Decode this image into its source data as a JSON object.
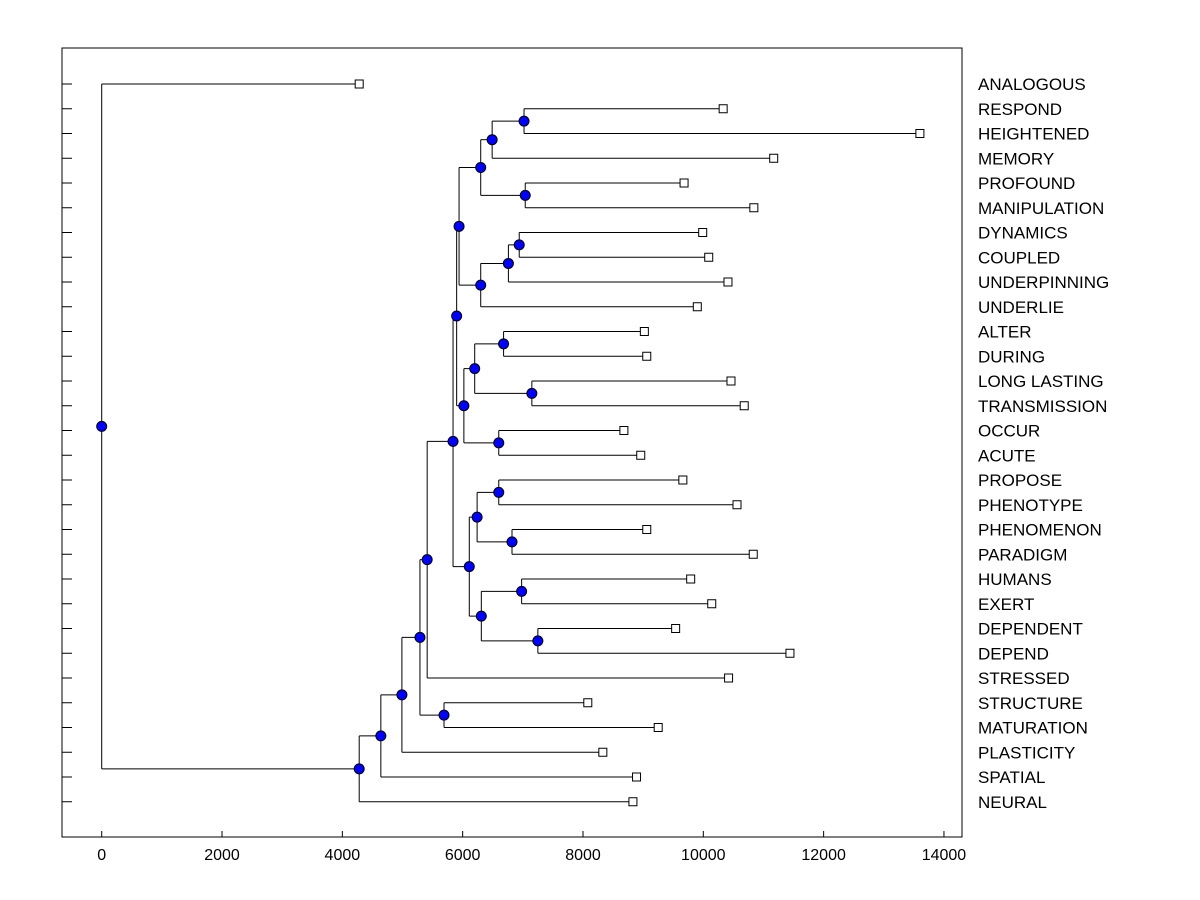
{
  "chart_data": {
    "type": "dendrogram",
    "x_ticks": [
      0,
      2000,
      4000,
      6000,
      8000,
      10000,
      12000,
      14000
    ],
    "xlim": [
      -660,
      14300
    ],
    "grid": false,
    "leaves": [
      {
        "label": "ANALOGOUS",
        "x": 4280
      },
      {
        "label": "RESPOND",
        "x": 10330
      },
      {
        "label": "HEIGHTENED",
        "x": 13600
      },
      {
        "label": "MEMORY",
        "x": 11170
      },
      {
        "label": "PROFOUND",
        "x": 9680
      },
      {
        "label": "MANIPULATION",
        "x": 10840
      },
      {
        "label": "DYNAMICS",
        "x": 9990
      },
      {
        "label": "COUPLED",
        "x": 10090
      },
      {
        "label": "UNDERPINNING",
        "x": 10410
      },
      {
        "label": "UNDERLIE",
        "x": 9900
      },
      {
        "label": "ALTER",
        "x": 9020
      },
      {
        "label": "DURING",
        "x": 9060
      },
      {
        "label": "LONG LASTING",
        "x": 10460
      },
      {
        "label": "TRANSMISSION",
        "x": 10680
      },
      {
        "label": "OCCUR",
        "x": 8680
      },
      {
        "label": "ACUTE",
        "x": 8960
      },
      {
        "label": "PROPOSE",
        "x": 9660
      },
      {
        "label": "PHENOTYPE",
        "x": 10560
      },
      {
        "label": "PHENOMENON",
        "x": 9060
      },
      {
        "label": "PARADIGM",
        "x": 10830
      },
      {
        "label": "HUMANS",
        "x": 9790
      },
      {
        "label": "EXERT",
        "x": 10140
      },
      {
        "label": "DEPENDENT",
        "x": 9540
      },
      {
        "label": "DEPEND",
        "x": 11440
      },
      {
        "label": "STRESSED",
        "x": 10420
      },
      {
        "label": "STRUCTURE",
        "x": 8080
      },
      {
        "label": "MATURATION",
        "x": 9250
      },
      {
        "label": "PLASTICITY",
        "x": 8330
      },
      {
        "label": "SPATIAL",
        "x": 8890
      },
      {
        "label": "NEURAL",
        "x": 8830
      }
    ],
    "merges": [
      {
        "id": "m1",
        "x": 7020,
        "children": [
          "l1",
          "l2"
        ]
      },
      {
        "id": "m2",
        "x": 6490,
        "children": [
          "m1",
          "l3"
        ]
      },
      {
        "id": "m3",
        "x": 7040,
        "children": [
          "l4",
          "l5"
        ]
      },
      {
        "id": "m4",
        "x": 6300,
        "children": [
          "m2",
          "m3"
        ]
      },
      {
        "id": "m5",
        "x": 6940,
        "children": [
          "l6",
          "l7"
        ]
      },
      {
        "id": "m6",
        "x": 6760,
        "children": [
          "m5",
          "l8"
        ]
      },
      {
        "id": "m7",
        "x": 6300,
        "children": [
          "m6",
          "l9"
        ]
      },
      {
        "id": "m8",
        "x": 5940,
        "children": [
          "m4",
          "m7"
        ]
      },
      {
        "id": "m9",
        "x": 6680,
        "children": [
          "l10",
          "l11"
        ]
      },
      {
        "id": "m10",
        "x": 7150,
        "children": [
          "l12",
          "l13"
        ]
      },
      {
        "id": "m11",
        "x": 6200,
        "children": [
          "m9",
          "m10"
        ]
      },
      {
        "id": "m12",
        "x": 6600,
        "children": [
          "l14",
          "l15"
        ]
      },
      {
        "id": "m13",
        "x": 6020,
        "children": [
          "m11",
          "m12"
        ]
      },
      {
        "id": "m14",
        "x": 5900,
        "children": [
          "m8",
          "m13"
        ]
      },
      {
        "id": "m15",
        "x": 6600,
        "children": [
          "l16",
          "l17"
        ]
      },
      {
        "id": "m16",
        "x": 6820,
        "children": [
          "l18",
          "l19"
        ]
      },
      {
        "id": "m17",
        "x": 6240,
        "children": [
          "m15",
          "m16"
        ]
      },
      {
        "id": "m18",
        "x": 6980,
        "children": [
          "l20",
          "l21"
        ]
      },
      {
        "id": "m19",
        "x": 7250,
        "children": [
          "l22",
          "l23"
        ]
      },
      {
        "id": "m20",
        "x": 6310,
        "children": [
          "m18",
          "m19"
        ]
      },
      {
        "id": "m21",
        "x": 6110,
        "children": [
          "m17",
          "m20"
        ]
      },
      {
        "id": "m22",
        "x": 5840,
        "children": [
          "m14",
          "m21"
        ]
      },
      {
        "id": "m23",
        "x": 5410,
        "children": [
          "m22",
          "l24"
        ]
      },
      {
        "id": "m24",
        "x": 5690,
        "children": [
          "l25",
          "l26"
        ]
      },
      {
        "id": "m25",
        "x": 5290,
        "children": [
          "m23",
          "m24"
        ]
      },
      {
        "id": "m26",
        "x": 4990,
        "children": [
          "m25",
          "l27"
        ]
      },
      {
        "id": "m27",
        "x": 4640,
        "children": [
          "m26",
          "l28"
        ]
      },
      {
        "id": "m28",
        "x": 4280,
        "children": [
          "m27",
          "l29"
        ]
      },
      {
        "id": "m29",
        "x": 0,
        "children": [
          "l0",
          "m28"
        ]
      }
    ],
    "colors": {
      "node_fill": "#0000ff",
      "leaf_fill": "#ffffff",
      "line": "#000000"
    }
  }
}
